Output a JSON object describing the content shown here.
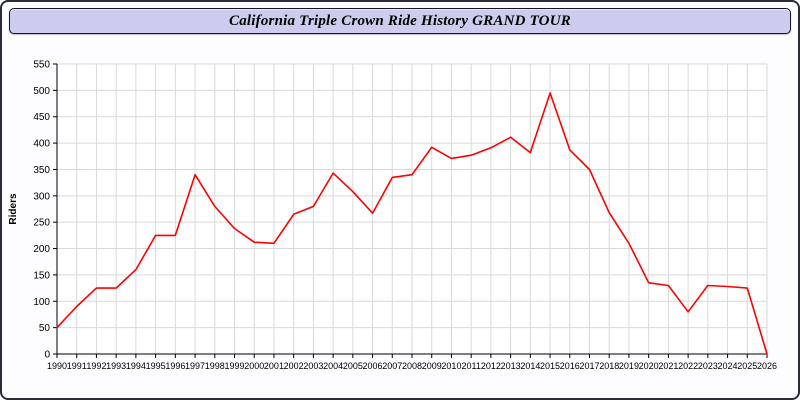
{
  "header": {
    "title": "California Triple Crown Ride History GRAND TOUR"
  },
  "colors": {
    "frame_border": "#2b2b3a",
    "titlebar_bg": "#ccccee",
    "grid": "#d9d9d9",
    "axis": "#000000",
    "line": "#ff0000",
    "plot_bg": "#ffffff"
  },
  "chart_data": {
    "type": "line",
    "title": "California Triple Crown Ride History GRAND TOUR",
    "xlabel": "",
    "ylabel": "Riders",
    "ylim": [
      0,
      550
    ],
    "ytick_step": 50,
    "grid": true,
    "legend_position": "none",
    "line_color": "#ff0000",
    "categories": [
      1990,
      1991,
      1992,
      1993,
      1994,
      1995,
      1996,
      1997,
      1998,
      1999,
      2000,
      2001,
      2002,
      2003,
      2004,
      2005,
      2006,
      2007,
      2008,
      2009,
      2010,
      2011,
      2012,
      2013,
      2014,
      2015,
      2016,
      2017,
      2018,
      2019,
      2020,
      2021,
      2022,
      2023,
      2024,
      2025,
      2026
    ],
    "values": [
      50,
      90,
      125,
      125,
      160,
      225,
      225,
      340,
      280,
      238,
      212,
      210,
      265,
      280,
      343,
      308,
      267,
      335,
      340,
      392,
      371,
      377,
      391,
      411,
      382,
      495,
      387,
      350,
      268,
      210,
      135,
      130,
      80,
      130,
      128,
      125,
      0
    ]
  }
}
